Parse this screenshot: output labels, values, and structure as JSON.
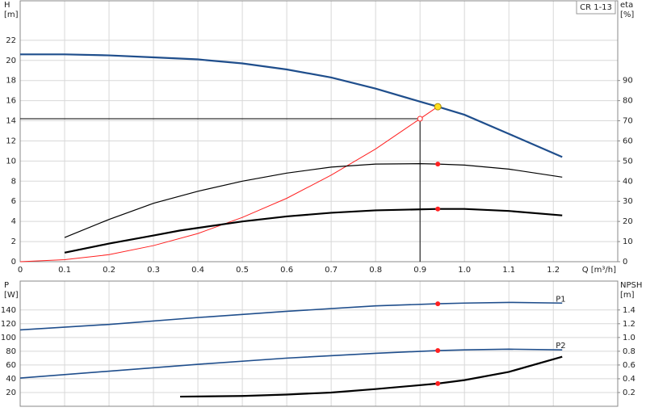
{
  "chart_data": [
    {
      "type": "line",
      "title": "CR 1-13",
      "xlabel": "Q [m³/h]",
      "ylabel": [
        "H",
        "[m]"
      ],
      "y2label": [
        "eta",
        "[%]"
      ],
      "xlim": [
        0,
        1.345
      ],
      "ylim": [
        0,
        25.92
      ],
      "y2lim": [
        0,
        129.6
      ],
      "xticks": [
        0,
        0.1,
        0.2,
        0.3,
        0.4,
        0.5,
        0.6,
        0.7,
        0.8,
        0.9,
        {
          "value": 1,
          "label": "1.0"
        },
        1.1,
        1.2
      ],
      "yticks": [
        0,
        2,
        4,
        6,
        8,
        10,
        12,
        14,
        16,
        18,
        20,
        22
      ],
      "y2ticks": [
        0,
        10,
        20,
        30,
        40,
        50,
        60,
        70,
        80,
        90
      ],
      "grid": true,
      "series": [
        {
          "color": "#1f4e8c",
          "line_width": 2.2,
          "axis": "y",
          "x": [
            0,
            0.1,
            0.2,
            0.3,
            0.4,
            0.5,
            0.6,
            0.7,
            0.8,
            0.9,
            0.94,
            1.0,
            1.1,
            1.22
          ],
          "values": [
            20.6,
            20.6,
            20.5,
            20.3,
            20.1,
            19.7,
            19.1,
            18.3,
            17.2,
            15.9,
            15.4,
            14.6,
            12.7,
            10.4
          ]
        },
        {
          "color": "#ff2020",
          "line_width": 1,
          "axis": "y",
          "x": [
            0,
            0.1,
            0.2,
            0.3,
            0.4,
            0.5,
            0.6,
            0.7,
            0.8,
            0.9,
            0.94
          ],
          "values": [
            0,
            0.2,
            0.7,
            1.6,
            2.8,
            4.4,
            6.3,
            8.6,
            11.2,
            14.2,
            15.4
          ]
        },
        {
          "color": "#000000",
          "line_width": 1.2,
          "axis": "y2",
          "x": [
            0.1,
            0.2,
            0.3,
            0.4,
            0.5,
            0.6,
            0.7,
            0.8,
            0.9,
            0.94,
            1.0,
            1.1,
            1.22
          ],
          "values": [
            12,
            21,
            29,
            35,
            40,
            44,
            47,
            48.5,
            48.7,
            48.5,
            48,
            46,
            42
          ]
        },
        {
          "color": "#000000",
          "line_width": 2.2,
          "axis": "y2",
          "x": [
            0.1,
            0.2,
            0.3,
            0.36,
            0.5,
            0.6,
            0.7,
            0.8,
            0.94,
            1.0,
            1.1,
            1.22
          ],
          "values": [
            4.5,
            9,
            13,
            15.5,
            20,
            22.5,
            24.3,
            25.5,
            26.2,
            26.2,
            25.2,
            23
          ]
        }
      ],
      "points": [
        {
          "x": 0.94,
          "y": 15.4,
          "axis": "y",
          "color": "#ffe020"
        },
        {
          "x": 0.94,
          "y": 48.5,
          "axis": "y2",
          "color": "#ff2020"
        },
        {
          "x": 0.94,
          "y": 26.2,
          "axis": "y2",
          "color": "#ff2020"
        }
      ],
      "operating_point": {
        "x": 0.9,
        "y": 14.2
      }
    },
    {
      "type": "line",
      "ylabel": [
        "P",
        "[W]"
      ],
      "y2label": [
        "NPSH",
        "[m]"
      ],
      "xlim": [
        0,
        1.345
      ],
      "ylim": [
        0,
        182
      ],
      "y2lim": [
        0,
        1.82
      ],
      "xticks": [
        0,
        0.1,
        0.2,
        0.3,
        0.4,
        0.5,
        0.6,
        0.7,
        0.8,
        0.9,
        1,
        1.1,
        1.2
      ],
      "show_xtick_labels": false,
      "yticks": [
        20,
        40,
        60,
        80,
        100,
        120,
        140
      ],
      "y2ticks": [
        0.2,
        0.4,
        0.6,
        0.8,
        {
          "value": 1,
          "label": "1.0"
        },
        1.2,
        1.4
      ],
      "grid": true,
      "series": [
        {
          "name": "P1",
          "color": "#1f4e8c",
          "line_width": 1.6,
          "axis": "y",
          "x": [
            0,
            0.2,
            0.4,
            0.6,
            0.8,
            0.94,
            1.0,
            1.1,
            1.22
          ],
          "values": [
            111,
            119,
            129,
            138,
            146,
            149,
            150,
            151,
            150
          ]
        },
        {
          "name": "P2",
          "color": "#1f4e8c",
          "line_width": 1.6,
          "axis": "y",
          "x": [
            0,
            0.2,
            0.4,
            0.6,
            0.8,
            0.94,
            1.0,
            1.1,
            1.22
          ],
          "values": [
            41,
            51,
            61,
            70,
            77,
            81,
            82,
            83,
            82
          ]
        },
        {
          "color": "#000000",
          "line_width": 2.2,
          "axis": "y2",
          "x": [
            0.36,
            0.5,
            0.6,
            0.7,
            0.8,
            0.94,
            1.0,
            1.1,
            1.22
          ],
          "values": [
            0.14,
            0.15,
            0.17,
            0.2,
            0.25,
            0.33,
            0.38,
            0.5,
            0.72
          ]
        }
      ],
      "points": [
        {
          "x": 0.94,
          "y": 149,
          "axis": "y",
          "color": "#ff2020"
        },
        {
          "x": 0.94,
          "y": 81,
          "axis": "y",
          "color": "#ff2020"
        },
        {
          "x": 0.94,
          "y": 0.33,
          "axis": "y2",
          "color": "#ff2020"
        }
      ]
    }
  ]
}
